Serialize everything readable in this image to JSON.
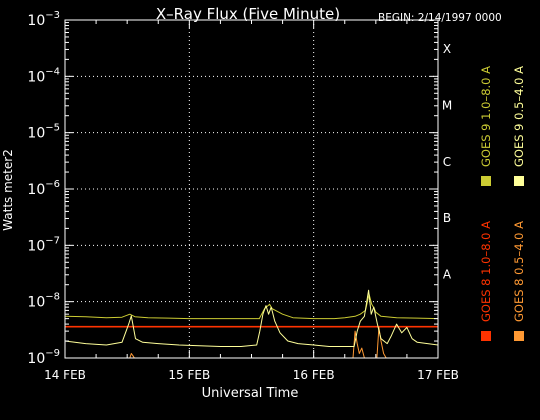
{
  "chart_data": {
    "type": "line",
    "title": "X–Ray Flux (Five Minute)",
    "begin_label": "BEGIN: 2/14/1997 0000",
    "xlabel": "Universal Time",
    "ylabel": "Watts meter2",
    "y_scale": "log",
    "ylim": [
      1e-09,
      0.001
    ],
    "y_ticks": [
      {
        "base": "10",
        "exp": "−3",
        "value": 0.001
      },
      {
        "base": "10",
        "exp": "−4",
        "value": 0.0001
      },
      {
        "base": "10",
        "exp": "−5",
        "value": 1e-05
      },
      {
        "base": "10",
        "exp": "−6",
        "value": 1e-06
      },
      {
        "base": "10",
        "exp": "−7",
        "value": 1e-07
      },
      {
        "base": "10",
        "exp": "−8",
        "value": 1e-08
      },
      {
        "base": "10",
        "exp": "−9",
        "value": 1e-09
      }
    ],
    "xlim": [
      0,
      72
    ],
    "x_unit": "hours since 14 FEB 1997 00:00",
    "x_ticks": [
      {
        "label": "14 FEB",
        "hour": 0
      },
      {
        "label": "15 FEB",
        "hour": 24
      },
      {
        "label": "16 FEB",
        "hour": 48
      },
      {
        "label": "17 FEB",
        "hour": 72
      }
    ],
    "flare_classes": [
      {
        "label": "X",
        "value": 0.0001
      },
      {
        "label": "M",
        "value": 1e-05
      },
      {
        "label": "C",
        "value": 1e-06
      },
      {
        "label": "B",
        "value": 1e-07
      },
      {
        "label": "A",
        "value": 1e-08
      }
    ],
    "grid": "dotted",
    "legend": [
      {
        "label": "GOES 8 1.0–8.0 A",
        "color": "#ff3300"
      },
      {
        "label": "GOES 8 0.5–4.0 A",
        "color": "#ff9933"
      },
      {
        "label": "GOES 9 1.0–8.0 A",
        "color": "#cccc33"
      },
      {
        "label": "GOES 9 0.5–4.0 A",
        "color": "#ffff99"
      }
    ],
    "series": [
      {
        "name": "GOES 8 1.0–8.0 A",
        "color": "#ff3300",
        "x": [
          0,
          6,
          12,
          18,
          24,
          30,
          36,
          42,
          48,
          54,
          60,
          66,
          72
        ],
        "y": [
          3.6e-09,
          3.6e-09,
          3.6e-09,
          3.6e-09,
          3.6e-09,
          3.6e-09,
          3.6e-09,
          3.6e-09,
          3.6e-09,
          3.6e-09,
          3.6e-09,
          3.6e-09,
          3.6e-09
        ]
      },
      {
        "name": "GOES 8 0.5–4.0 A",
        "color": "#ff9933",
        "x": [
          12.5,
          12.8,
          13.1,
          13.4,
          55.6,
          56,
          56.4,
          56.8,
          57.3,
          57.8,
          60.2,
          60.6,
          61,
          61.5,
          62
        ],
        "y": [
          1e-09,
          1.2e-09,
          1.1e-09,
          1e-09,
          1e-09,
          3e-09,
          1.8e-09,
          1.2e-09,
          1.5e-09,
          1e-09,
          1e-09,
          3.5e-09,
          2e-09,
          1.2e-09,
          1e-09
        ]
      },
      {
        "name": "GOES 9 1.0–8.0 A",
        "color": "#cccc33",
        "x": [
          0,
          4,
          8,
          11,
          12.5,
          13.5,
          16,
          20,
          24,
          28,
          32,
          37.5,
          38.5,
          39.5,
          40,
          42,
          44,
          48,
          52,
          54,
          56,
          57,
          58,
          58.7,
          59.2,
          59.7,
          60,
          61,
          64,
          68,
          72
        ],
        "y": [
          5.5e-09,
          5.4e-09,
          5.2e-09,
          5.3e-09,
          6e-09,
          5.4e-09,
          5.2e-09,
          5.1e-09,
          5e-09,
          5e-09,
          5e-09,
          5e-09,
          7.5e-09,
          9e-09,
          7.5e-09,
          6e-09,
          5.2e-09,
          5e-09,
          5e-09,
          5.2e-09,
          5.5e-09,
          6e-09,
          7e-09,
          1.35e-08,
          9e-09,
          7.5e-09,
          6.5e-09,
          5.5e-09,
          5.2e-09,
          5.1e-09,
          5e-09
        ]
      },
      {
        "name": "GOES 9 0.5–4.0 A",
        "color": "#ffff99",
        "x": [
          0,
          4,
          8,
          11,
          12.3,
          12.8,
          13.6,
          15,
          18,
          22,
          26,
          30,
          34,
          37,
          37.6,
          38.2,
          38.8,
          39.3,
          39.8,
          40.5,
          41.5,
          43,
          45,
          48,
          51,
          54,
          55.8,
          56.4,
          57,
          57.8,
          58.6,
          59.1,
          59.6,
          60.3,
          61,
          62.2,
          63,
          64,
          65,
          66,
          67,
          68,
          70,
          72
        ],
        "y": [
          2e-09,
          1.8e-09,
          1.7e-09,
          1.9e-09,
          4e-09,
          5.6e-09,
          2.2e-09,
          1.9e-09,
          1.8e-09,
          1.7e-09,
          1.65e-09,
          1.6e-09,
          1.6e-09,
          1.7e-09,
          3e-09,
          6e-09,
          8.5e-09,
          6e-09,
          8e-09,
          4.5e-09,
          2.8e-09,
          2e-09,
          1.8e-09,
          1.7e-09,
          1.6e-09,
          1.6e-09,
          1.6e-09,
          3e-09,
          4.5e-09,
          5.5e-09,
          1.6e-08,
          6e-09,
          8e-09,
          4e-09,
          2.2e-09,
          1.8e-09,
          2.5e-09,
          4e-09,
          2.8e-09,
          3.5e-09,
          2.2e-09,
          1.9e-09,
          1.8e-09,
          1.7e-09
        ]
      }
    ]
  }
}
